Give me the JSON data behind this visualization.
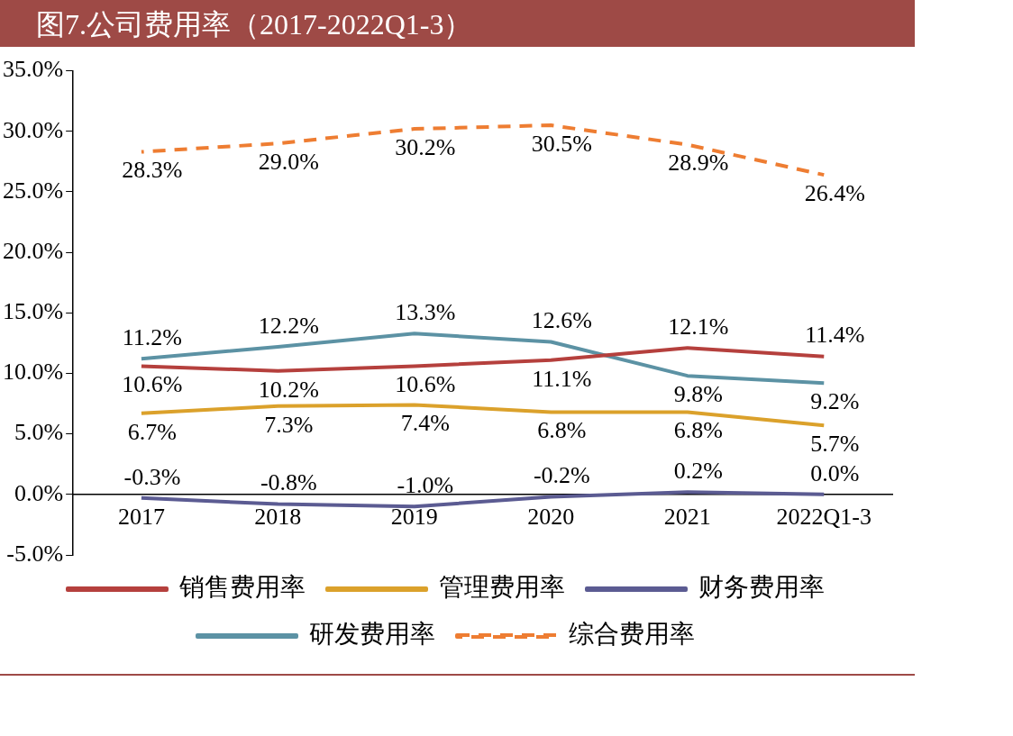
{
  "chart_data": {
    "type": "line",
    "title": "图7.公司费用率（2017-2022Q1-3）",
    "categories": [
      "2017",
      "2018",
      "2019",
      "2020",
      "2021",
      "2022Q1-3"
    ],
    "series": [
      {
        "name": "销售费用率",
        "color": "#b5403d",
        "values": [
          10.6,
          10.2,
          10.6,
          11.1,
          12.1,
          11.4
        ],
        "value_labels": [
          "10.6%",
          "10.2%",
          "10.6%",
          "11.1%",
          "12.1%",
          "11.4%"
        ]
      },
      {
        "name": "管理费用率",
        "color": "#dba12b",
        "values": [
          6.7,
          7.3,
          7.4,
          6.8,
          6.8,
          5.7
        ],
        "value_labels": [
          "6.7%",
          "7.3%",
          "7.4%",
          "6.8%",
          "6.8%",
          "5.7%"
        ]
      },
      {
        "name": "财务费用率",
        "color": "#5b5b92",
        "values": [
          -0.3,
          -0.8,
          -1.0,
          -0.2,
          0.2,
          0.0
        ],
        "value_labels": [
          "-0.3%",
          "-0.8%",
          "-1.0%",
          "-0.2%",
          "0.2%",
          "0.0%"
        ]
      },
      {
        "name": "研发费用率",
        "color": "#5c92a4",
        "values": [
          11.2,
          12.2,
          13.3,
          12.6,
          9.8,
          9.2
        ],
        "value_labels": [
          "11.2%",
          "12.2%",
          "13.3%",
          "12.6%",
          "9.8%",
          "9.2%"
        ]
      },
      {
        "name": "综合费用率",
        "color": "#ee7d32",
        "line_style": "dashed",
        "values": [
          28.3,
          29.0,
          30.2,
          30.5,
          28.9,
          26.4
        ],
        "value_labels": [
          "28.3%",
          "29.0%",
          "30.2%",
          "30.5%",
          "28.9%",
          "26.4%"
        ]
      }
    ],
    "ylim": [
      -5,
      35
    ],
    "yticks": [
      {
        "value": -5,
        "label": "-5.0%"
      },
      {
        "value": 0,
        "label": "0.0%"
      },
      {
        "value": 5,
        "label": "5.0%"
      },
      {
        "value": 10,
        "label": "10.0%"
      },
      {
        "value": 15,
        "label": "15.0%"
      },
      {
        "value": 20,
        "label": "20.0%"
      },
      {
        "value": 25,
        "label": "25.0%"
      },
      {
        "value": 30,
        "label": "30.0%"
      },
      {
        "value": 35,
        "label": "35.0%"
      }
    ],
    "grid": false,
    "legend": "bottom",
    "marker": "none"
  }
}
